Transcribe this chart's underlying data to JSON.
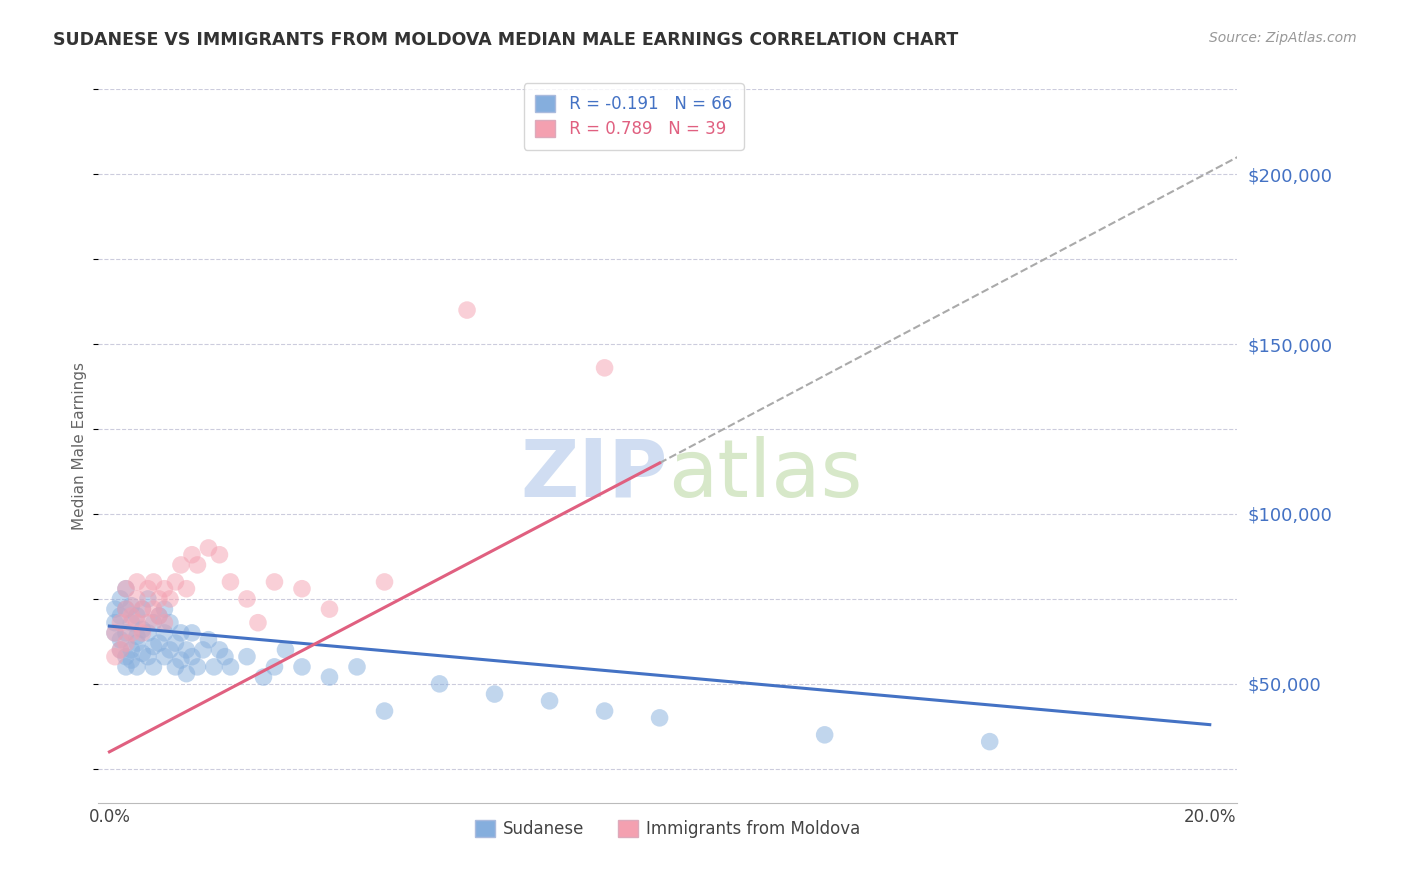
{
  "title": "SUDANESE VS IMMIGRANTS FROM MOLDOVA MEDIAN MALE EARNINGS CORRELATION CHART",
  "source": "Source: ZipAtlas.com",
  "ylabel": "Median Male Earnings",
  "yticks": [
    50000,
    100000,
    150000,
    200000
  ],
  "ytick_labels": [
    "$50,000",
    "$100,000",
    "$150,000",
    "$200,000"
  ],
  "xlim": [
    -0.002,
    0.205
  ],
  "ylim": [
    15000,
    225000
  ],
  "legend_blue_label": "Sudanese",
  "legend_pink_label": "Immigrants from Moldova",
  "r_blue": -0.191,
  "n_blue": 66,
  "r_pink": 0.789,
  "n_pink": 39,
  "blue_color": "#85AEDD",
  "pink_color": "#F4A0B0",
  "blue_line_color": "#4472C4",
  "pink_line_color": "#E06080",
  "watermark_zip": "ZIP",
  "watermark_atlas": "atlas",
  "background_color": "#FFFFFF",
  "grid_color": "#CCCCDD",
  "axis_label_color": "#4472C4",
  "title_color": "#333333",
  "blue_scatter_x": [
    0.001,
    0.001,
    0.001,
    0.002,
    0.002,
    0.002,
    0.002,
    0.003,
    0.003,
    0.003,
    0.003,
    0.003,
    0.004,
    0.004,
    0.004,
    0.004,
    0.005,
    0.005,
    0.005,
    0.005,
    0.006,
    0.006,
    0.006,
    0.007,
    0.007,
    0.007,
    0.008,
    0.008,
    0.008,
    0.009,
    0.009,
    0.01,
    0.01,
    0.01,
    0.011,
    0.011,
    0.012,
    0.012,
    0.013,
    0.013,
    0.014,
    0.014,
    0.015,
    0.015,
    0.016,
    0.017,
    0.018,
    0.019,
    0.02,
    0.021,
    0.022,
    0.025,
    0.028,
    0.03,
    0.032,
    0.035,
    0.04,
    0.045,
    0.05,
    0.06,
    0.07,
    0.08,
    0.09,
    0.1,
    0.13,
    0.16
  ],
  "blue_scatter_y": [
    68000,
    72000,
    65000,
    75000,
    60000,
    70000,
    63000,
    58000,
    65000,
    72000,
    78000,
    55000,
    60000,
    68000,
    73000,
    57000,
    64000,
    70000,
    62000,
    55000,
    66000,
    59000,
    72000,
    65000,
    58000,
    75000,
    61000,
    68000,
    55000,
    62000,
    70000,
    58000,
    65000,
    72000,
    60000,
    68000,
    55000,
    62000,
    57000,
    65000,
    60000,
    53000,
    58000,
    65000,
    55000,
    60000,
    63000,
    55000,
    60000,
    58000,
    55000,
    58000,
    52000,
    55000,
    60000,
    55000,
    52000,
    55000,
    42000,
    50000,
    47000,
    45000,
    42000,
    40000,
    35000,
    33000
  ],
  "pink_scatter_x": [
    0.001,
    0.001,
    0.002,
    0.002,
    0.003,
    0.003,
    0.003,
    0.004,
    0.004,
    0.005,
    0.005,
    0.005,
    0.006,
    0.006,
    0.007,
    0.007,
    0.008,
    0.008,
    0.009,
    0.009,
    0.01,
    0.01,
    0.011,
    0.012,
    0.013,
    0.014,
    0.015,
    0.016,
    0.018,
    0.02,
    0.022,
    0.025,
    0.027,
    0.03,
    0.035,
    0.04,
    0.05,
    0.065,
    0.09
  ],
  "pink_scatter_y": [
    58000,
    65000,
    60000,
    68000,
    62000,
    72000,
    78000,
    70000,
    65000,
    68000,
    75000,
    80000,
    72000,
    65000,
    78000,
    68000,
    72000,
    80000,
    70000,
    75000,
    78000,
    68000,
    75000,
    80000,
    85000,
    78000,
    88000,
    85000,
    90000,
    88000,
    80000,
    75000,
    68000,
    80000,
    78000,
    72000,
    80000,
    160000,
    143000
  ],
  "blue_line_x0": 0.0,
  "blue_line_x1": 0.2,
  "blue_line_y0": 67000,
  "blue_line_y1": 38000,
  "pink_line_x0": 0.0,
  "pink_line_x1": 0.2,
  "pink_line_y0": 30000,
  "pink_line_y1": 200000,
  "dash_line_x0": 0.1,
  "dash_line_x1": 0.205,
  "dash_line_y0": 133000,
  "dash_line_y1": 205000
}
